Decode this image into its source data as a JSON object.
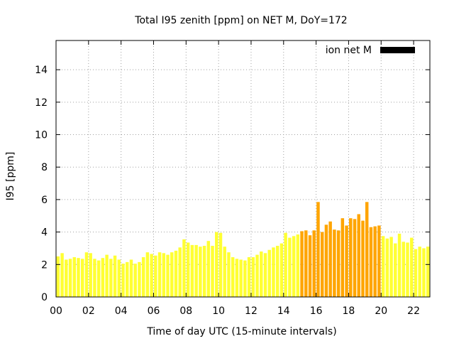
{
  "chart_data": {
    "type": "bar",
    "title": "Total I95 zenith [ppm] on NET M, DoY=172",
    "xlabel": "Time of day UTC (15-minute intervals)",
    "ylabel": "I95 [ppm]",
    "xlim": [
      0,
      23
    ],
    "ylim": [
      0,
      15.8
    ],
    "xticks": [
      0,
      2,
      4,
      6,
      8,
      10,
      12,
      14,
      16,
      18,
      20,
      22
    ],
    "xtick_labels": [
      "00",
      "02",
      "04",
      "06",
      "08",
      "10",
      "12",
      "14",
      "16",
      "18",
      "20",
      "22"
    ],
    "yticks": [
      0,
      2,
      4,
      6,
      8,
      10,
      12,
      14
    ],
    "ytick_labels": [
      "0",
      "2",
      "4",
      "6",
      "8",
      "10",
      "12",
      "14"
    ],
    "grid": true,
    "legend": {
      "position": "top-right",
      "label": "ion net M",
      "color": "#000000"
    },
    "colors": {
      "normal": "#ffff33",
      "low": "#ffff00",
      "elevated": "#ffa500",
      "frame": "#000000",
      "grid": "#a0a0a0"
    },
    "x": [
      0.0,
      0.25,
      0.5,
      0.75,
      1.0,
      1.25,
      1.5,
      1.75,
      2.0,
      2.25,
      2.5,
      2.75,
      3.0,
      3.25,
      3.5,
      3.75,
      4.0,
      4.25,
      4.5,
      4.75,
      5.0,
      5.25,
      5.5,
      5.75,
      6.0,
      6.25,
      6.5,
      6.75,
      7.0,
      7.25,
      7.5,
      7.75,
      8.0,
      8.25,
      8.5,
      8.75,
      9.0,
      9.25,
      9.5,
      9.75,
      10.0,
      10.25,
      10.5,
      10.75,
      11.0,
      11.25,
      11.5,
      11.75,
      12.0,
      12.25,
      12.5,
      12.75,
      13.0,
      13.25,
      13.5,
      13.75,
      14.0,
      14.25,
      14.5,
      14.75,
      15.0,
      15.25,
      15.5,
      15.75,
      16.0,
      16.25,
      16.5,
      16.75,
      17.0,
      17.25,
      17.5,
      17.75,
      18.0,
      18.25,
      18.5,
      18.75,
      19.0,
      19.25,
      19.5,
      19.75,
      20.0,
      20.25,
      20.5,
      20.75,
      21.0,
      21.25,
      21.5,
      21.75,
      22.0,
      22.25,
      22.5,
      22.75
    ],
    "values": [
      2.5,
      2.7,
      2.3,
      2.35,
      2.45,
      2.4,
      2.35,
      2.75,
      2.7,
      2.35,
      2.25,
      2.4,
      2.6,
      2.35,
      2.55,
      2.3,
      2.05,
      2.15,
      2.3,
      2.05,
      2.15,
      2.45,
      2.75,
      2.65,
      2.55,
      2.75,
      2.7,
      2.6,
      2.75,
      2.85,
      3.05,
      3.55,
      3.35,
      3.2,
      3.2,
      3.1,
      3.15,
      3.45,
      3.15,
      4.0,
      3.95,
      3.1,
      2.75,
      2.45,
      2.35,
      2.3,
      2.25,
      2.45,
      2.45,
      2.6,
      2.8,
      2.7,
      2.9,
      3.05,
      3.15,
      3.3,
      3.95,
      3.65,
      3.75,
      3.85,
      4.05,
      4.1,
      3.8,
      4.1,
      5.85,
      4.0,
      4.45,
      4.65,
      4.15,
      4.1,
      4.85,
      4.4,
      4.85,
      4.8,
      5.1,
      4.7,
      5.85,
      4.3,
      4.35,
      4.4,
      3.75,
      3.6,
      3.7,
      3.3,
      3.9,
      3.4,
      3.35,
      3.65,
      2.95,
      3.1,
      3.0,
      3.1
    ],
    "bar_colors": [
      "#ffff33",
      "#ffff33",
      "#ffff33",
      "#ffff33",
      "#ffff33",
      "#ffff33",
      "#ffff33",
      "#ffff33",
      "#ffff33",
      "#ffff33",
      "#ffff33",
      "#ffff33",
      "#ffff33",
      "#ffff33",
      "#ffff33",
      "#ffff33",
      "#ffff33",
      "#ffff33",
      "#ffff33",
      "#ffff33",
      "#ffff33",
      "#ffff33",
      "#ffff33",
      "#ffff33",
      "#ffff33",
      "#ffff33",
      "#ffff33",
      "#ffff33",
      "#ffff33",
      "#ffff33",
      "#ffff33",
      "#ffff33",
      "#ffff33",
      "#ffff33",
      "#ffff33",
      "#ffff33",
      "#ffff33",
      "#ffff33",
      "#ffff33",
      "#ffff33",
      "#ffff33",
      "#ffff33",
      "#ffff33",
      "#ffff33",
      "#ffff33",
      "#ffff33",
      "#ffff33",
      "#ffff33",
      "#ffff33",
      "#ffff33",
      "#ffff33",
      "#ffff33",
      "#ffff33",
      "#ffff33",
      "#ffff33",
      "#ffff33",
      "#ffff33",
      "#ffff33",
      "#ffff33",
      "#ffff33",
      "#ffa500",
      "#ffa500",
      "#ffa500",
      "#ffa500",
      "#ffa500",
      "#ffa500",
      "#ffa500",
      "#ffa500",
      "#ffa500",
      "#ffa500",
      "#ffa500",
      "#ffa500",
      "#ffa500",
      "#ffa500",
      "#ffa500",
      "#ffa500",
      "#ffa500",
      "#ffa500",
      "#ffa500",
      "#ffa500",
      "#ffff33",
      "#ffff33",
      "#ffff33",
      "#ffff33",
      "#ffff33",
      "#ffff33",
      "#ffff33",
      "#ffff33",
      "#ffff33",
      "#ffff33",
      "#ffff33",
      "#ffff33"
    ]
  }
}
